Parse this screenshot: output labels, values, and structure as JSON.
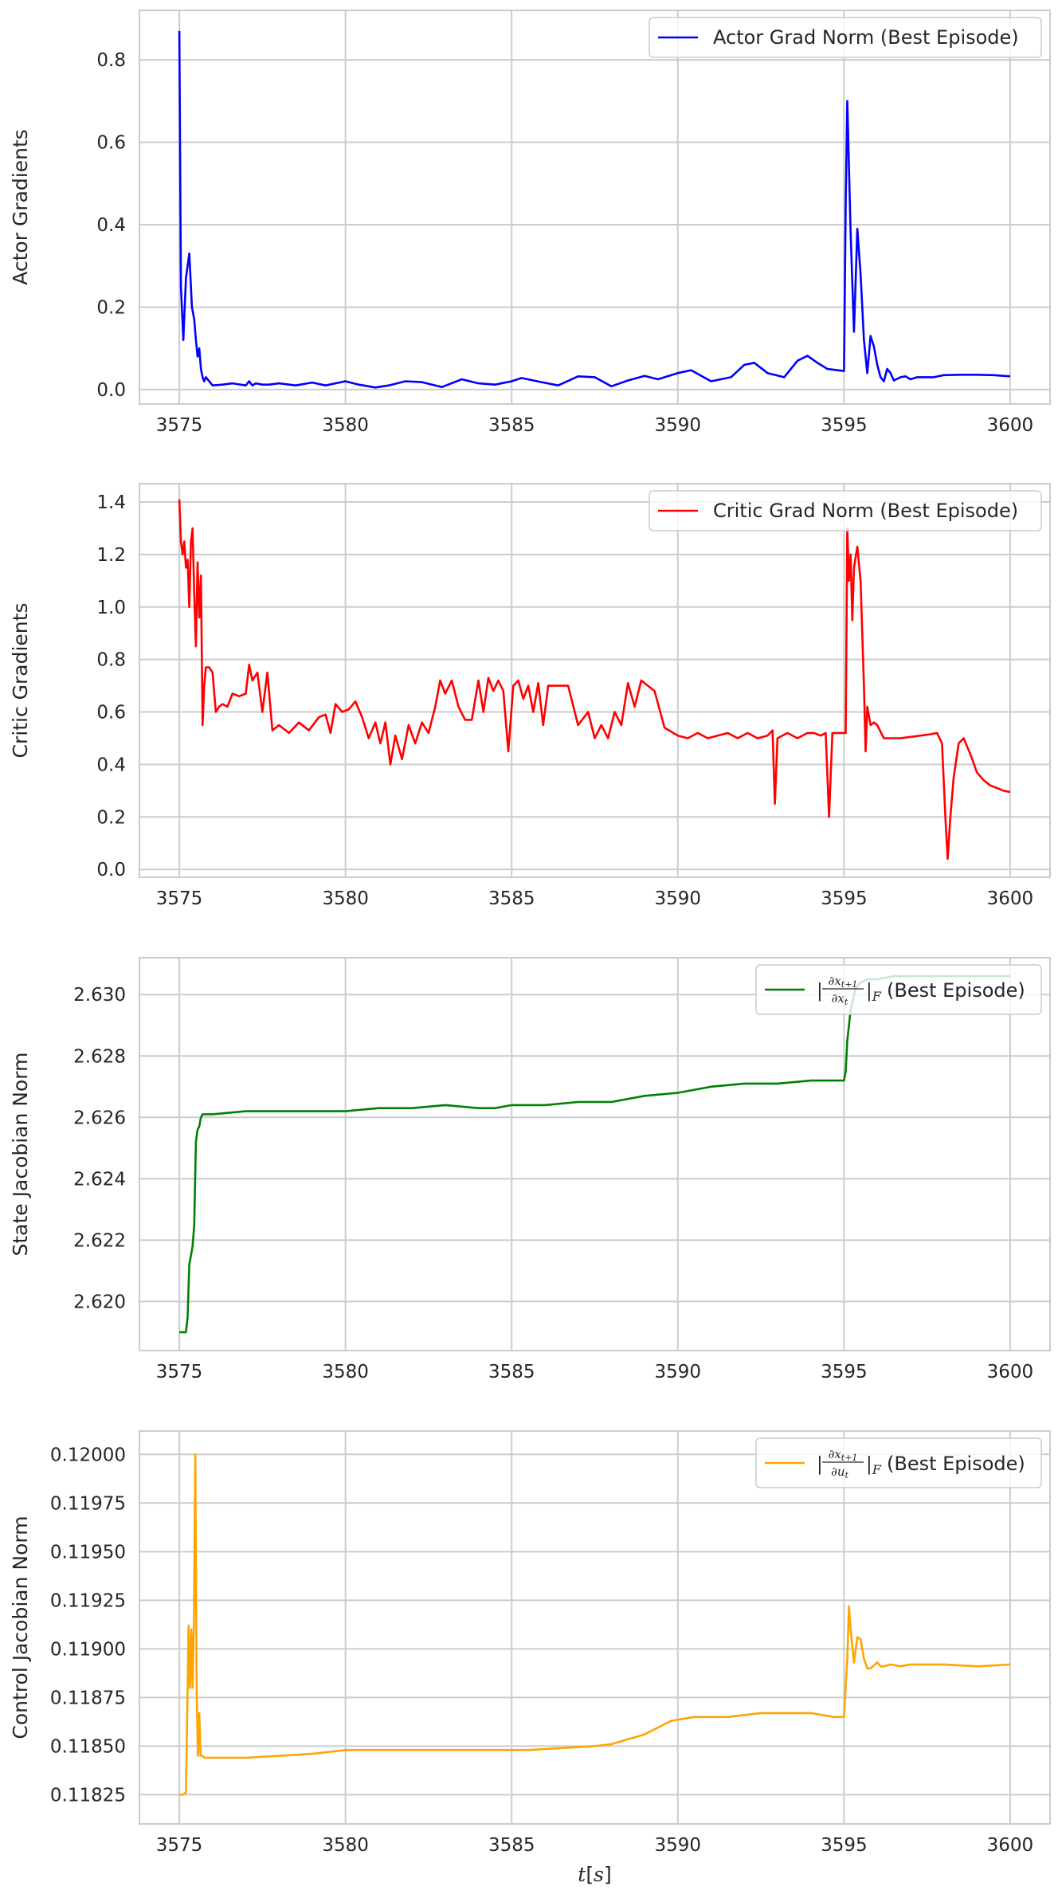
{
  "chart_data": [
    {
      "type": "line",
      "ylabel": "Actor Gradients",
      "xlabel": "",
      "xlim": [
        3573.8,
        3601.2
      ],
      "ylim": [
        -0.035,
        0.92
      ],
      "xticks": [
        3575,
        3580,
        3585,
        3590,
        3595,
        3600
      ],
      "xtick_labels": [
        "3575",
        "3580",
        "3585",
        "3590",
        "3595",
        "3600"
      ],
      "yticks": [
        0.0,
        0.2,
        0.4,
        0.6,
        0.8
      ],
      "ytick_labels": [
        "0.0",
        "0.2",
        "0.4",
        "0.6",
        "0.8"
      ],
      "grid": true,
      "legend_position": "top-right",
      "series": [
        {
          "name": "Actor Grad Norm (Best Episode)",
          "color": "#0000ff",
          "x": [
            3575.0,
            3575.05,
            3575.12,
            3575.2,
            3575.3,
            3575.38,
            3575.45,
            3575.5,
            3575.55,
            3575.6,
            3575.65,
            3575.7,
            3575.75,
            3575.8,
            3575.9,
            3576.0,
            3576.3,
            3576.6,
            3577.0,
            3577.1,
            3577.2,
            3577.3,
            3577.5,
            3577.7,
            3578.0,
            3578.5,
            3579.0,
            3579.4,
            3580.0,
            3580.4,
            3580.9,
            3581.3,
            3581.8,
            3582.3,
            3582.9,
            3583.5,
            3584.0,
            3584.5,
            3585.0,
            3585.3,
            3585.9,
            3586.4,
            3587.0,
            3587.5,
            3588.0,
            3588.5,
            3589.0,
            3589.4,
            3590.0,
            3590.4,
            3591.0,
            3591.6,
            3592.0,
            3592.3,
            3592.7,
            3593.2,
            3593.6,
            3593.9,
            3594.2,
            3594.5,
            3594.8,
            3595.0,
            3595.05,
            3595.1,
            3595.2,
            3595.3,
            3595.4,
            3595.5,
            3595.6,
            3595.7,
            3595.8,
            3595.9,
            3596.0,
            3596.1,
            3596.2,
            3596.3,
            3596.4,
            3596.5,
            3596.7,
            3596.85,
            3597.0,
            3597.2,
            3597.4,
            3597.7,
            3598.0,
            3598.5,
            3599.0,
            3599.5,
            3600.0
          ],
          "y": [
            0.87,
            0.25,
            0.12,
            0.27,
            0.33,
            0.2,
            0.17,
            0.12,
            0.08,
            0.1,
            0.05,
            0.03,
            0.02,
            0.03,
            0.02,
            0.01,
            0.012,
            0.015,
            0.01,
            0.02,
            0.01,
            0.015,
            0.012,
            0.012,
            0.015,
            0.01,
            0.017,
            0.01,
            0.02,
            0.012,
            0.005,
            0.01,
            0.02,
            0.018,
            0.006,
            0.025,
            0.015,
            0.012,
            0.02,
            0.028,
            0.018,
            0.01,
            0.032,
            0.03,
            0.008,
            0.022,
            0.033,
            0.025,
            0.04,
            0.047,
            0.02,
            0.03,
            0.06,
            0.065,
            0.04,
            0.03,
            0.07,
            0.082,
            0.065,
            0.05,
            0.047,
            0.045,
            0.45,
            0.7,
            0.38,
            0.14,
            0.39,
            0.28,
            0.12,
            0.04,
            0.13,
            0.105,
            0.06,
            0.03,
            0.02,
            0.05,
            0.04,
            0.022,
            0.03,
            0.032,
            0.025,
            0.03,
            0.03,
            0.03,
            0.035,
            0.036,
            0.036,
            0.035,
            0.032
          ]
        }
      ]
    },
    {
      "type": "line",
      "ylabel": "Critic Gradients",
      "xlabel": "",
      "xlim": [
        3573.8,
        3601.2
      ],
      "ylim": [
        -0.03,
        1.47
      ],
      "xticks": [
        3575,
        3580,
        3585,
        3590,
        3595,
        3600
      ],
      "xtick_labels": [
        "3575",
        "3580",
        "3585",
        "3590",
        "3595",
        "3600"
      ],
      "yticks": [
        0.0,
        0.2,
        0.4,
        0.6,
        0.8,
        1.0,
        1.2,
        1.4
      ],
      "ytick_labels": [
        "0.0",
        "0.2",
        "0.4",
        "0.6",
        "0.8",
        "1.0",
        "1.2",
        "1.4"
      ],
      "grid": true,
      "legend_position": "top-right",
      "series": [
        {
          "name": "Critic Grad Norm (Best Episode)",
          "color": "#ff0000",
          "x": [
            3575.0,
            3575.05,
            3575.1,
            3575.15,
            3575.2,
            3575.25,
            3575.3,
            3575.35,
            3575.4,
            3575.45,
            3575.5,
            3575.55,
            3575.6,
            3575.65,
            3575.7,
            3575.75,
            3575.8,
            3575.9,
            3576.0,
            3576.1,
            3576.2,
            3576.3,
            3576.45,
            3576.6,
            3576.8,
            3577.0,
            3577.1,
            3577.2,
            3577.35,
            3577.5,
            3577.65,
            3577.8,
            3578.0,
            3578.3,
            3578.6,
            3578.9,
            3579.2,
            3579.4,
            3579.55,
            3579.7,
            3579.9,
            3580.1,
            3580.3,
            3580.5,
            3580.7,
            3580.9,
            3581.05,
            3581.2,
            3581.35,
            3581.5,
            3581.7,
            3581.9,
            3582.1,
            3582.3,
            3582.5,
            3582.7,
            3582.85,
            3583.0,
            3583.2,
            3583.4,
            3583.6,
            3583.8,
            3584.0,
            3584.15,
            3584.3,
            3584.45,
            3584.6,
            3584.75,
            3584.9,
            3585.05,
            3585.2,
            3585.35,
            3585.5,
            3585.65,
            3585.8,
            3585.95,
            3586.1,
            3586.4,
            3586.7,
            3587.0,
            3587.3,
            3587.5,
            3587.7,
            3587.9,
            3588.1,
            3588.3,
            3588.5,
            3588.7,
            3588.9,
            3589.1,
            3589.3,
            3589.6,
            3590.0,
            3590.3,
            3590.6,
            3590.9,
            3591.2,
            3591.5,
            3591.8,
            3592.1,
            3592.4,
            3592.7,
            3592.85,
            3592.92,
            3593.0,
            3593.3,
            3593.6,
            3593.9,
            3594.1,
            3594.3,
            3594.45,
            3594.55,
            3594.65,
            3594.8,
            3594.95,
            3595.05,
            3595.1,
            3595.15,
            3595.2,
            3595.25,
            3595.3,
            3595.4,
            3595.5,
            3595.6,
            3595.65,
            3595.7,
            3595.8,
            3595.9,
            3596.0,
            3596.2,
            3596.4,
            3596.7,
            3597.0,
            3597.3,
            3597.6,
            3597.8,
            3597.95,
            3598.05,
            3598.12,
            3598.2,
            3598.3,
            3598.45,
            3598.6,
            3598.8,
            3599.0,
            3599.2,
            3599.4,
            3599.6,
            3599.8,
            3600.0
          ],
          "y": [
            1.41,
            1.25,
            1.2,
            1.25,
            1.15,
            1.18,
            1.0,
            1.25,
            1.3,
            1.05,
            0.85,
            1.17,
            0.96,
            1.12,
            0.55,
            0.7,
            0.77,
            0.77,
            0.75,
            0.6,
            0.62,
            0.63,
            0.62,
            0.67,
            0.66,
            0.67,
            0.78,
            0.72,
            0.75,
            0.6,
            0.75,
            0.53,
            0.55,
            0.52,
            0.56,
            0.53,
            0.58,
            0.59,
            0.52,
            0.63,
            0.6,
            0.61,
            0.64,
            0.58,
            0.5,
            0.56,
            0.48,
            0.56,
            0.4,
            0.51,
            0.42,
            0.55,
            0.48,
            0.56,
            0.52,
            0.62,
            0.72,
            0.67,
            0.72,
            0.62,
            0.57,
            0.57,
            0.72,
            0.6,
            0.73,
            0.68,
            0.72,
            0.68,
            0.45,
            0.7,
            0.72,
            0.65,
            0.7,
            0.6,
            0.71,
            0.55,
            0.7,
            0.7,
            0.7,
            0.55,
            0.6,
            0.5,
            0.55,
            0.5,
            0.6,
            0.55,
            0.71,
            0.62,
            0.72,
            0.7,
            0.68,
            0.54,
            0.51,
            0.5,
            0.52,
            0.5,
            0.51,
            0.52,
            0.5,
            0.52,
            0.5,
            0.51,
            0.53,
            0.25,
            0.5,
            0.52,
            0.5,
            0.52,
            0.52,
            0.51,
            0.52,
            0.2,
            0.52,
            0.52,
            0.52,
            0.52,
            1.3,
            1.1,
            1.2,
            0.95,
            1.15,
            1.23,
            1.1,
            0.7,
            0.45,
            0.62,
            0.55,
            0.56,
            0.55,
            0.5,
            0.5,
            0.5,
            0.505,
            0.51,
            0.515,
            0.52,
            0.48,
            0.2,
            0.04,
            0.2,
            0.35,
            0.48,
            0.5,
            0.44,
            0.37,
            0.34,
            0.32,
            0.31,
            0.3,
            0.295
          ]
        }
      ]
    },
    {
      "type": "line",
      "ylabel": "State Jacobian Norm",
      "xlabel": "",
      "xlim": [
        3573.8,
        3601.2
      ],
      "ylim": [
        2.6184,
        2.6312
      ],
      "xticks": [
        3575,
        3580,
        3585,
        3590,
        3595,
        3600
      ],
      "xtick_labels": [
        "3575",
        "3580",
        "3585",
        "3590",
        "3595",
        "3600"
      ],
      "yticks": [
        2.62,
        2.622,
        2.624,
        2.626,
        2.628,
        2.63
      ],
      "ytick_labels": [
        "2.620",
        "2.622",
        "2.624",
        "2.626",
        "2.628",
        "2.630"
      ],
      "grid": true,
      "legend_position": "top-right",
      "legend_math": {
        "numerator": "∂x",
        "num_sub": "t+1",
        "denominator": "∂x",
        "den_sub": "t",
        "norm_sub": "F",
        "suffix": " (Best Episode)"
      },
      "series": [
        {
          "name": "",
          "color": "#008000",
          "x": [
            3575.0,
            3575.1,
            3575.2,
            3575.25,
            3575.3,
            3575.35,
            3575.4,
            3575.45,
            3575.5,
            3575.55,
            3575.6,
            3575.65,
            3575.7,
            3575.8,
            3576.0,
            3577.0,
            3578.0,
            3579.0,
            3580.0,
            3581.0,
            3582.0,
            3583.0,
            3584.0,
            3584.5,
            3585.0,
            3586.0,
            3587.0,
            3588.0,
            3589.0,
            3590.0,
            3591.0,
            3592.0,
            3593.0,
            3594.0,
            3595.0,
            3595.05,
            3595.1,
            3595.2,
            3595.35,
            3595.5,
            3595.7,
            3596.0,
            3596.5,
            3597.0,
            3598.0,
            3599.0,
            3600.0
          ],
          "y": [
            2.619,
            2.619,
            2.619,
            2.6195,
            2.6212,
            2.6215,
            2.6218,
            2.6225,
            2.6252,
            2.6256,
            2.6257,
            2.626,
            2.6261,
            2.6261,
            2.6261,
            2.6262,
            2.6262,
            2.6262,
            2.6262,
            2.6263,
            2.6263,
            2.6264,
            2.6263,
            2.6263,
            2.6264,
            2.6264,
            2.6265,
            2.6265,
            2.6267,
            2.6268,
            2.627,
            2.6271,
            2.6271,
            2.6272,
            2.6272,
            2.6275,
            2.6285,
            2.6295,
            2.6302,
            2.6304,
            2.6305,
            2.6305,
            2.6306,
            2.6306,
            2.6306,
            2.6306,
            2.6306
          ]
        }
      ]
    },
    {
      "type": "line",
      "ylabel": "Control Jacobian Norm",
      "xlabel": "t[s]",
      "xlim": [
        3573.8,
        3601.2
      ],
      "ylim": [
        0.1181,
        0.12012
      ],
      "xticks": [
        3575,
        3580,
        3585,
        3590,
        3595,
        3600
      ],
      "xtick_labels": [
        "3575",
        "3580",
        "3585",
        "3590",
        "3595",
        "3600"
      ],
      "yticks": [
        0.11825,
        0.1185,
        0.11875,
        0.119,
        0.11925,
        0.1195,
        0.11975,
        0.12
      ],
      "ytick_labels": [
        "0.11825",
        "0.11850",
        "0.11875",
        "0.11900",
        "0.11925",
        "0.11950",
        "0.11975",
        "0.12000"
      ],
      "grid": true,
      "legend_position": "top-right",
      "legend_math": {
        "numerator": "∂x",
        "num_sub": "t+1",
        "denominator": "∂u",
        "den_sub": "t",
        "norm_sub": "F",
        "suffix": " (Best Episode)"
      },
      "series": [
        {
          "name": "",
          "color": "#ffa500",
          "x": [
            3575.0,
            3575.1,
            3575.2,
            3575.25,
            3575.28,
            3575.32,
            3575.36,
            3575.4,
            3575.44,
            3575.48,
            3575.52,
            3575.56,
            3575.6,
            3575.64,
            3575.7,
            3575.75,
            3575.8,
            3576.0,
            3577.0,
            3578.0,
            3579.0,
            3580.0,
            3580.5,
            3581.5,
            3582.5,
            3583.5,
            3584.5,
            3585.5,
            3586.5,
            3587.5,
            3588.0,
            3589.0,
            3589.8,
            3590.5,
            3591.5,
            3592.0,
            3592.5,
            3593.0,
            3594.0,
            3594.7,
            3595.0,
            3595.1,
            3595.15,
            3595.2,
            3595.3,
            3595.4,
            3595.5,
            3595.6,
            3595.7,
            3595.8,
            3596.0,
            3596.1,
            3596.2,
            3596.4,
            3596.7,
            3597.0,
            3598.0,
            3599.0,
            3600.0
          ],
          "y": [
            0.11825,
            0.11825,
            0.11826,
            0.1188,
            0.11912,
            0.1188,
            0.1191,
            0.1188,
            0.11915,
            0.12,
            0.1188,
            0.11845,
            0.11867,
            0.11845,
            0.11845,
            0.11844,
            0.11844,
            0.11844,
            0.11844,
            0.11845,
            0.11846,
            0.11848,
            0.11848,
            0.11848,
            0.11848,
            0.11848,
            0.11848,
            0.11848,
            0.11849,
            0.1185,
            0.11851,
            0.11856,
            0.11863,
            0.11865,
            0.11865,
            0.11866,
            0.11867,
            0.11867,
            0.11867,
            0.11865,
            0.11865,
            0.11895,
            0.11922,
            0.1191,
            0.11893,
            0.11906,
            0.11905,
            0.11895,
            0.1189,
            0.1189,
            0.11893,
            0.11891,
            0.11891,
            0.11892,
            0.11891,
            0.11892,
            0.11892,
            0.11891,
            0.11892
          ]
        }
      ]
    }
  ]
}
